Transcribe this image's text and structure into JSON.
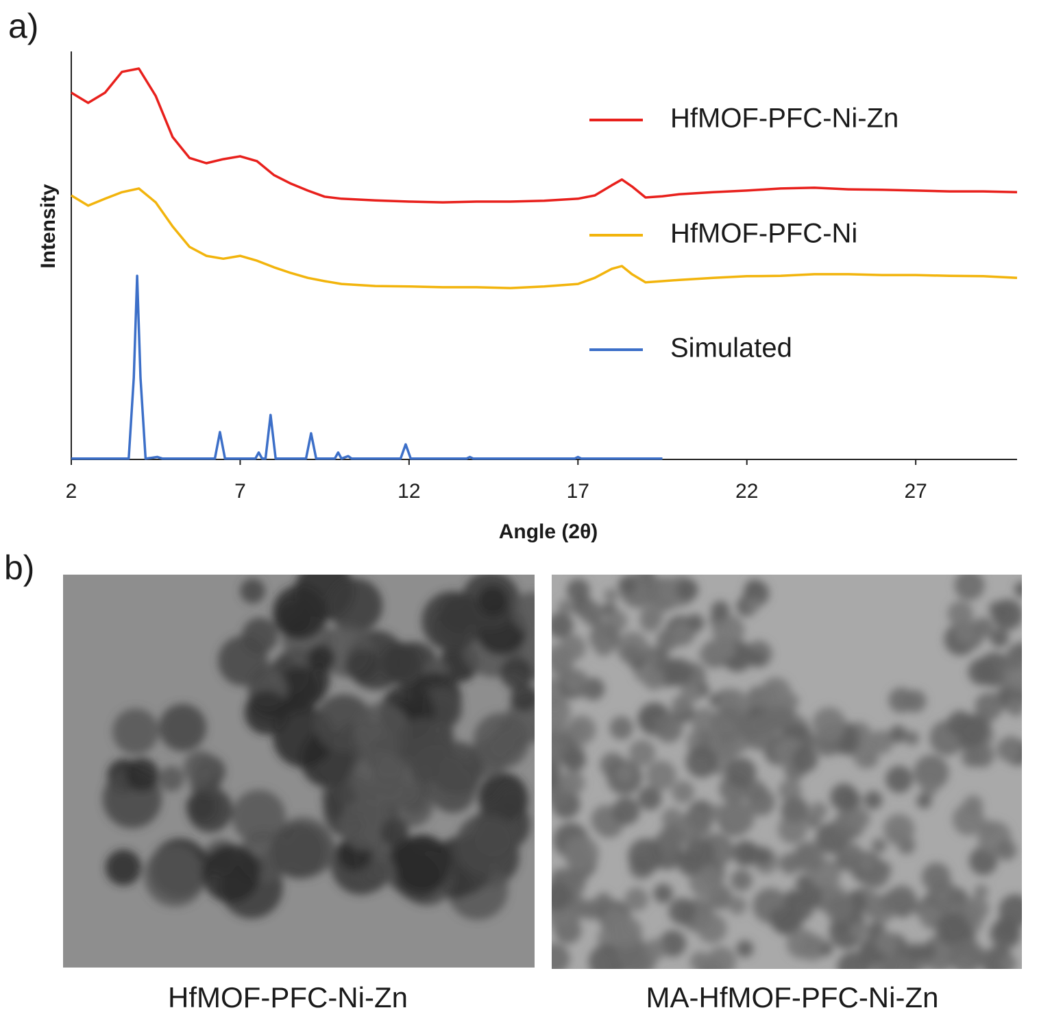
{
  "panel_labels": [
    "a)",
    "b)"
  ],
  "chart_data": {
    "type": "line",
    "x_label": "Angle (2θ)",
    "y_label": "Intensity",
    "xlim": [
      2,
      30
    ],
    "xticks": [
      2,
      7,
      12,
      17,
      22,
      27
    ],
    "ylim": [
      0,
      100
    ],
    "legend": "right",
    "series": [
      {
        "name": "HfMOF-PFC-Ni-Zn",
        "color": "#e8201c",
        "x": [
          2,
          2.5,
          3,
          3.5,
          4,
          4.5,
          5,
          5.5,
          6,
          6.5,
          7,
          7.5,
          8,
          8.5,
          9,
          9.5,
          10,
          11,
          12,
          13,
          14,
          15,
          16,
          17,
          17.5,
          18,
          18.3,
          18.6,
          19,
          19.5,
          20,
          21,
          22,
          23,
          24,
          25,
          26,
          27,
          28,
          29,
          30
        ],
        "values": [
          89.9,
          87.4,
          89.9,
          95.0,
          95.8,
          89.1,
          79.0,
          73.9,
          72.6,
          73.6,
          74.3,
          73.1,
          69.7,
          67.6,
          65.9,
          64.4,
          63.9,
          63.5,
          63.2,
          63.0,
          63.2,
          63.2,
          63.4,
          63.9,
          64.7,
          67.2,
          68.6,
          66.9,
          64.2,
          64.5,
          65.0,
          65.5,
          65.9,
          66.4,
          66.6,
          66.2,
          66.1,
          65.9,
          65.7,
          65.7,
          65.5
        ]
      },
      {
        "name": "HfMOF-PFC-Ni",
        "color": "#f2b40c",
        "x": [
          2,
          2.5,
          3,
          3.5,
          4,
          4.5,
          5,
          5.5,
          6,
          6.5,
          7,
          7.5,
          8,
          8.5,
          9,
          9.5,
          10,
          11,
          12,
          13,
          14,
          15,
          16,
          17,
          17.5,
          18,
          18.3,
          18.6,
          19,
          19.5,
          20,
          21,
          22,
          23,
          24,
          25,
          26,
          27,
          28,
          29,
          30
        ],
        "values": [
          64.7,
          62.2,
          63.9,
          65.5,
          66.4,
          63.0,
          57.1,
          52.1,
          49.9,
          49.2,
          49.9,
          48.7,
          47.1,
          45.7,
          44.5,
          43.7,
          43.0,
          42.5,
          42.4,
          42.2,
          42.2,
          42.0,
          42.4,
          43.0,
          44.5,
          46.7,
          47.4,
          45.4,
          43.4,
          43.7,
          44.0,
          44.5,
          44.9,
          45.0,
          45.4,
          45.4,
          45.2,
          45.2,
          45.0,
          44.9,
          44.5
        ]
      },
      {
        "name": "Simulated",
        "color": "#3c6fc8",
        "x": [
          2,
          3.7,
          3.85,
          3.95,
          4.05,
          4.2,
          4.55,
          4.7,
          6.25,
          6.4,
          6.55,
          7.45,
          7.55,
          7.65,
          7.75,
          7.9,
          8.05,
          8.95,
          9.1,
          9.25,
          9.8,
          9.9,
          10.0,
          10.2,
          10.3,
          11.75,
          11.9,
          12.05,
          13.7,
          13.8,
          13.9,
          16.9,
          17.0,
          17.1,
          19.5
        ],
        "values": [
          0.2,
          0.2,
          20,
          45,
          20,
          0.2,
          0.6,
          0.2,
          0.2,
          6.7,
          0.2,
          0.2,
          1.7,
          0.2,
          0.2,
          10.9,
          0.2,
          0.2,
          6.4,
          0.2,
          0.2,
          1.7,
          0.2,
          0.8,
          0.2,
          0.2,
          3.7,
          0.2,
          0.2,
          0.6,
          0.2,
          0.2,
          0.6,
          0.2,
          0.2
        ]
      }
    ]
  },
  "images": [
    {
      "caption": "HfMOF-PFC-Ni-Zn"
    },
    {
      "caption": "MA-HfMOF-PFC-Ni-Zn"
    }
  ]
}
